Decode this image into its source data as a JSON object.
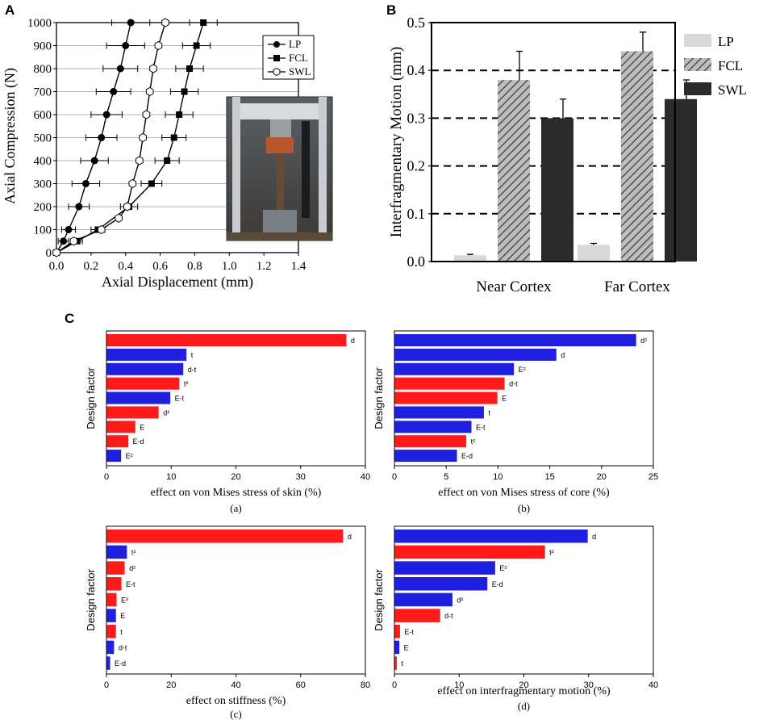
{
  "figure": {
    "panel_labels": [
      "A",
      "B",
      "C"
    ],
    "photo_description_present": true
  },
  "colors": {
    "lp": "#000000",
    "bar_lp": "#d9d9d9",
    "bar_fcl": "#8c8c8c",
    "bar_swl": "#2b2b2b",
    "tornado_red": "#ff1a1a",
    "tornado_blue": "#1f1fe0"
  },
  "chart_data": [
    {
      "id": "A",
      "type": "line",
      "title": "",
      "xlabel": "Axial Displacement (mm)",
      "ylabel": "Axial Compression (N)",
      "xlim": [
        0,
        1.4
      ],
      "ylim": [
        0,
        1000
      ],
      "x_ticks": [
        "0.0",
        "0.2",
        "0.4",
        "0.6",
        "0.8",
        "1.0",
        "1.2",
        "1.4"
      ],
      "y_ticks": [
        "0",
        "100",
        "200",
        "300",
        "400",
        "500",
        "600",
        "700",
        "800",
        "900",
        "1000"
      ],
      "grid": "horizontal",
      "legend_position": "top-right",
      "y": [
        0,
        50,
        100,
        150,
        200,
        300,
        400,
        500,
        600,
        700,
        800,
        900,
        1000
      ],
      "series": [
        {
          "name": "LP",
          "marker": "circle-filled",
          "x": [
            0.0,
            0.04,
            0.07,
            null,
            0.13,
            0.17,
            0.22,
            0.26,
            0.29,
            0.33,
            0.37,
            0.4,
            0.43
          ],
          "err": [
            0.0,
            0.03,
            0.04,
            null,
            0.06,
            0.08,
            0.08,
            0.09,
            0.09,
            0.1,
            0.1,
            0.11,
            0.11
          ]
        },
        {
          "name": "FCL",
          "marker": "square-filled",
          "x": [
            0.0,
            0.12,
            0.24,
            null,
            0.42,
            0.55,
            0.64,
            0.68,
            0.71,
            0.74,
            0.77,
            0.81,
            0.85
          ],
          "err": [
            0.0,
            0.03,
            0.04,
            null,
            0.05,
            0.06,
            0.07,
            0.07,
            0.08,
            0.08,
            0.08,
            0.08,
            0.08
          ]
        },
        {
          "name": "SWL",
          "marker": "hexagon-open",
          "x": [
            0.0,
            0.1,
            0.26,
            0.36,
            0.41,
            0.44,
            0.48,
            0.5,
            0.52,
            0.54,
            0.56,
            0.59,
            0.63
          ],
          "err": [
            0,
            0,
            0,
            0,
            0,
            0,
            0,
            0,
            0,
            0,
            0,
            0,
            0
          ]
        }
      ]
    },
    {
      "id": "B",
      "type": "bar",
      "title": "",
      "xlabel": "",
      "ylabel": "Interfragmentary Motion (mm)",
      "ylim": [
        0,
        0.5
      ],
      "y_ticks": [
        "0.0",
        "0.1",
        "0.2",
        "0.3",
        "0.4",
        "0.5"
      ],
      "grid": "dashed at 0.1, 0.2, 0.3, 0.4",
      "legend_position": "right",
      "categories": [
        "Near Cortex",
        "Far Cortex"
      ],
      "series": [
        {
          "name": "LP",
          "fill": "light-gray",
          "values": [
            0.013,
            0.035
          ],
          "err": [
            0.002,
            0.003
          ]
        },
        {
          "name": "FCL",
          "fill": "hatched",
          "values": [
            0.38,
            0.44
          ],
          "err": [
            0.06,
            0.04
          ]
        },
        {
          "name": "SWL",
          "fill": "dark",
          "values": [
            0.3,
            0.34
          ],
          "err": [
            0.04,
            0.04
          ]
        }
      ]
    },
    {
      "id": "Ca",
      "type": "bar",
      "orientation": "horizontal",
      "ylabel": "Design factor",
      "xlabel": "effect on von Mises stress of skin (%)",
      "sublabel": "(a)",
      "xlim": [
        0,
        40
      ],
      "x_ticks": [
        "0",
        "10",
        "20",
        "30",
        "40"
      ],
      "bars": [
        {
          "label": "d",
          "value": 37.0,
          "color": "red"
        },
        {
          "label": "t",
          "value": 12.3,
          "color": "blue"
        },
        {
          "label": "d-t",
          "value": 11.8,
          "color": "blue"
        },
        {
          "label": "t²",
          "value": 11.2,
          "color": "red"
        },
        {
          "label": "E-t",
          "value": 9.8,
          "color": "blue"
        },
        {
          "label": "d²",
          "value": 8.0,
          "color": "red"
        },
        {
          "label": "E",
          "value": 4.4,
          "color": "red"
        },
        {
          "label": "E-d",
          "value": 3.3,
          "color": "red"
        },
        {
          "label": "E²",
          "value": 2.2,
          "color": "blue"
        }
      ]
    },
    {
      "id": "Cb",
      "type": "bar",
      "orientation": "horizontal",
      "ylabel": "Design factor",
      "xlabel": "effect on von Mises stress of core (%)",
      "sublabel": "(b)",
      "xlim": [
        0,
        25
      ],
      "x_ticks": [
        "0",
        "5",
        "10",
        "15",
        "20",
        "25"
      ],
      "bars": [
        {
          "label": "d²",
          "value": 23.3,
          "color": "blue"
        },
        {
          "label": "d",
          "value": 15.6,
          "color": "blue"
        },
        {
          "label": "E²",
          "value": 11.5,
          "color": "blue"
        },
        {
          "label": "d-t",
          "value": 10.6,
          "color": "red"
        },
        {
          "label": "E",
          "value": 9.9,
          "color": "red"
        },
        {
          "label": "t",
          "value": 8.6,
          "color": "blue"
        },
        {
          "label": "E-t",
          "value": 7.4,
          "color": "blue"
        },
        {
          "label": "t²",
          "value": 6.9,
          "color": "red"
        },
        {
          "label": "E-d",
          "value": 6.0,
          "color": "blue"
        }
      ]
    },
    {
      "id": "Cc",
      "type": "bar",
      "orientation": "horizontal",
      "ylabel": "Design factor",
      "xlabel": "effect on stiffness (%)",
      "sublabel": "(c)",
      "xlim": [
        0,
        80
      ],
      "x_ticks": [
        "0",
        "20",
        "40",
        "60",
        "80"
      ],
      "bars": [
        {
          "label": "d",
          "value": 73.0,
          "color": "red"
        },
        {
          "label": "t²",
          "value": 6.2,
          "color": "blue"
        },
        {
          "label": "d²",
          "value": 5.5,
          "color": "red"
        },
        {
          "label": "E-t",
          "value": 4.5,
          "color": "red"
        },
        {
          "label": "E²",
          "value": 3.0,
          "color": "red"
        },
        {
          "label": "E",
          "value": 2.8,
          "color": "blue"
        },
        {
          "label": "t",
          "value": 2.8,
          "color": "red"
        },
        {
          "label": "d-t",
          "value": 2.2,
          "color": "blue"
        },
        {
          "label": "E-d",
          "value": 1.0,
          "color": "blue"
        }
      ]
    },
    {
      "id": "Cd",
      "type": "bar",
      "orientation": "horizontal",
      "ylabel": "Design factor",
      "xlabel": "effect on interfragmentary motion (%)",
      "sublabel": "(d)",
      "xlim": [
        0,
        40
      ],
      "x_ticks": [
        "0",
        "10",
        "20",
        "30",
        "40"
      ],
      "bars": [
        {
          "label": "d",
          "value": 29.8,
          "color": "blue"
        },
        {
          "label": "t²",
          "value": 23.2,
          "color": "red"
        },
        {
          "label": "E²",
          "value": 15.5,
          "color": "blue"
        },
        {
          "label": "E-d",
          "value": 14.3,
          "color": "blue"
        },
        {
          "label": "d²",
          "value": 8.9,
          "color": "blue"
        },
        {
          "label": "d-t",
          "value": 7.0,
          "color": "red"
        },
        {
          "label": "E-t",
          "value": 0.8,
          "color": "red"
        },
        {
          "label": "E",
          "value": 0.7,
          "color": "blue"
        },
        {
          "label": "t",
          "value": 0.3,
          "color": "red"
        }
      ]
    }
  ]
}
